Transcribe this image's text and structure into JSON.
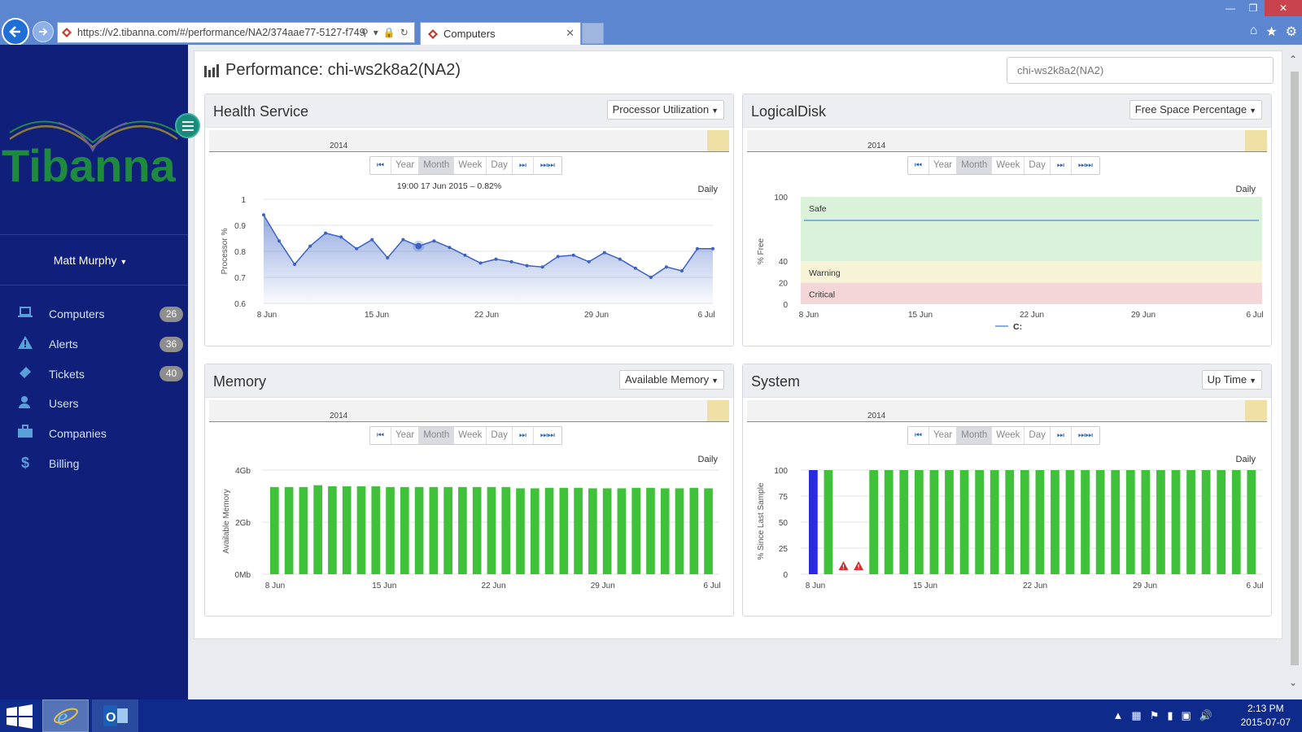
{
  "browser": {
    "url": "https://v2.tibanna.com/#/performance/NA2/374aae77-5127-f749",
    "tab_title": "Computers"
  },
  "sidebar": {
    "logo": "Tibanna",
    "user": "Matt Murphy",
    "items": [
      {
        "label": "Computers",
        "icon": "laptop-icon",
        "badge": "26"
      },
      {
        "label": "Alerts",
        "icon": "warning-icon",
        "badge": "36"
      },
      {
        "label": "Tickets",
        "icon": "ticket-icon",
        "badge": "40"
      },
      {
        "label": "Users",
        "icon": "user-icon",
        "badge": ""
      },
      {
        "label": "Companies",
        "icon": "briefcase-icon",
        "badge": ""
      },
      {
        "label": "Billing",
        "icon": "dollar-icon",
        "badge": ""
      }
    ]
  },
  "page": {
    "title": "Performance: chi-ws2k8a2(NA2)",
    "computer_field": "chi-ws2k8a2(NA2)"
  },
  "range_buttons": [
    "Year",
    "Month",
    "Week",
    "Day"
  ],
  "panels": {
    "health": {
      "title": "Health Service",
      "select": "Processor Utilization",
      "nav_year": "2014",
      "daily": "Daily"
    },
    "disk": {
      "title": "LogicalDisk",
      "select": "Free Space Percentage",
      "nav_year": "2014",
      "daily": "Daily"
    },
    "memory": {
      "title": "Memory",
      "select": "Available Memory",
      "nav_year": "2014",
      "daily": "Daily"
    },
    "system": {
      "title": "System",
      "select": "Up Time",
      "nav_year": "2014",
      "daily": "Daily"
    }
  },
  "chart_data": [
    {
      "type": "area",
      "tooltip": "19:00 17 Jun 2015 – 0.82%",
      "ylabel": "Processor %",
      "ylim": [
        0.6,
        1
      ],
      "yticks": [
        "0.6",
        "0.7",
        "0.8",
        "0.9",
        "1"
      ],
      "xticks": [
        "8 Jun",
        "15 Jun",
        "22 Jun",
        "29 Jun",
        "6 Jul"
      ],
      "x_day_range": [
        8,
        37
      ],
      "x_days": [
        8,
        9,
        10,
        11,
        12,
        13,
        14,
        15,
        16,
        17,
        18,
        19,
        20,
        21,
        22,
        23,
        24,
        25,
        26,
        27,
        28,
        29,
        30,
        31,
        32,
        33,
        34,
        35,
        36,
        37
      ],
      "values": [
        0.94,
        0.84,
        0.75,
        0.82,
        0.87,
        0.855,
        0.81,
        0.845,
        0.775,
        0.845,
        0.82,
        0.84,
        0.815,
        0.785,
        0.755,
        0.77,
        0.76,
        0.745,
        0.74,
        0.78,
        0.785,
        0.76,
        0.795,
        0.77,
        0.735,
        0.7,
        0.74,
        0.725,
        0.81,
        0.81
      ],
      "highlight_index": 10,
      "color": "#3b63c6"
    },
    {
      "type": "line",
      "ylabel": "% Free",
      "ylim": [
        0,
        100
      ],
      "yticks": [
        "0",
        "20",
        "40",
        "100"
      ],
      "xticks": [
        "8 Jun",
        "15 Jun",
        "22 Jun",
        "29 Jun",
        "6 Jul"
      ],
      "bands": [
        {
          "name": "Safe",
          "from": 40,
          "to": 100,
          "color": "#d9f2d9"
        },
        {
          "name": "Warning",
          "from": 20,
          "to": 40,
          "color": "#f7f3d6"
        },
        {
          "name": "Critical",
          "from": 0,
          "to": 20,
          "color": "#f4d6d8"
        }
      ],
      "series": [
        {
          "name": "C:",
          "values": [
            78,
            78
          ],
          "color": "#7fb0e6"
        }
      ]
    },
    {
      "type": "bar",
      "ylabel": "Available Memory",
      "ylim": [
        0,
        4
      ],
      "yticks": [
        "0Mb",
        "2Gb",
        "4Gb"
      ],
      "xticks": [
        "8 Jun",
        "15 Jun",
        "22 Jun",
        "29 Jun",
        "6 Jul"
      ],
      "values": [
        3.35,
        3.35,
        3.35,
        3.42,
        3.38,
        3.38,
        3.38,
        3.38,
        3.35,
        3.35,
        3.35,
        3.35,
        3.35,
        3.35,
        3.35,
        3.35,
        3.35,
        3.3,
        3.3,
        3.32,
        3.32,
        3.32,
        3.3,
        3.3,
        3.3,
        3.32,
        3.32,
        3.3,
        3.3,
        3.32,
        3.3
      ],
      "color": "#3fc23a"
    },
    {
      "type": "bar",
      "ylabel": "% Since Last Sample",
      "ylim": [
        0,
        100
      ],
      "yticks": [
        "0",
        "25",
        "50",
        "75",
        "100"
      ],
      "xticks": [
        "8 Jun",
        "15 Jun",
        "22 Jun",
        "29 Jun",
        "6 Jul"
      ],
      "values": [
        100,
        100,
        null,
        null,
        100,
        100,
        100,
        100,
        100,
        100,
        100,
        100,
        100,
        100,
        100,
        100,
        100,
        100,
        100,
        100,
        100,
        100,
        100,
        100,
        100,
        100,
        100,
        100,
        100,
        100
      ],
      "warnings_at": [
        2,
        3
      ],
      "first_bar_color": "#2a2ae0",
      "color": "#3fc23a"
    }
  ],
  "taskbar": {
    "time": "2:13 PM",
    "date": "2015-07-07"
  }
}
